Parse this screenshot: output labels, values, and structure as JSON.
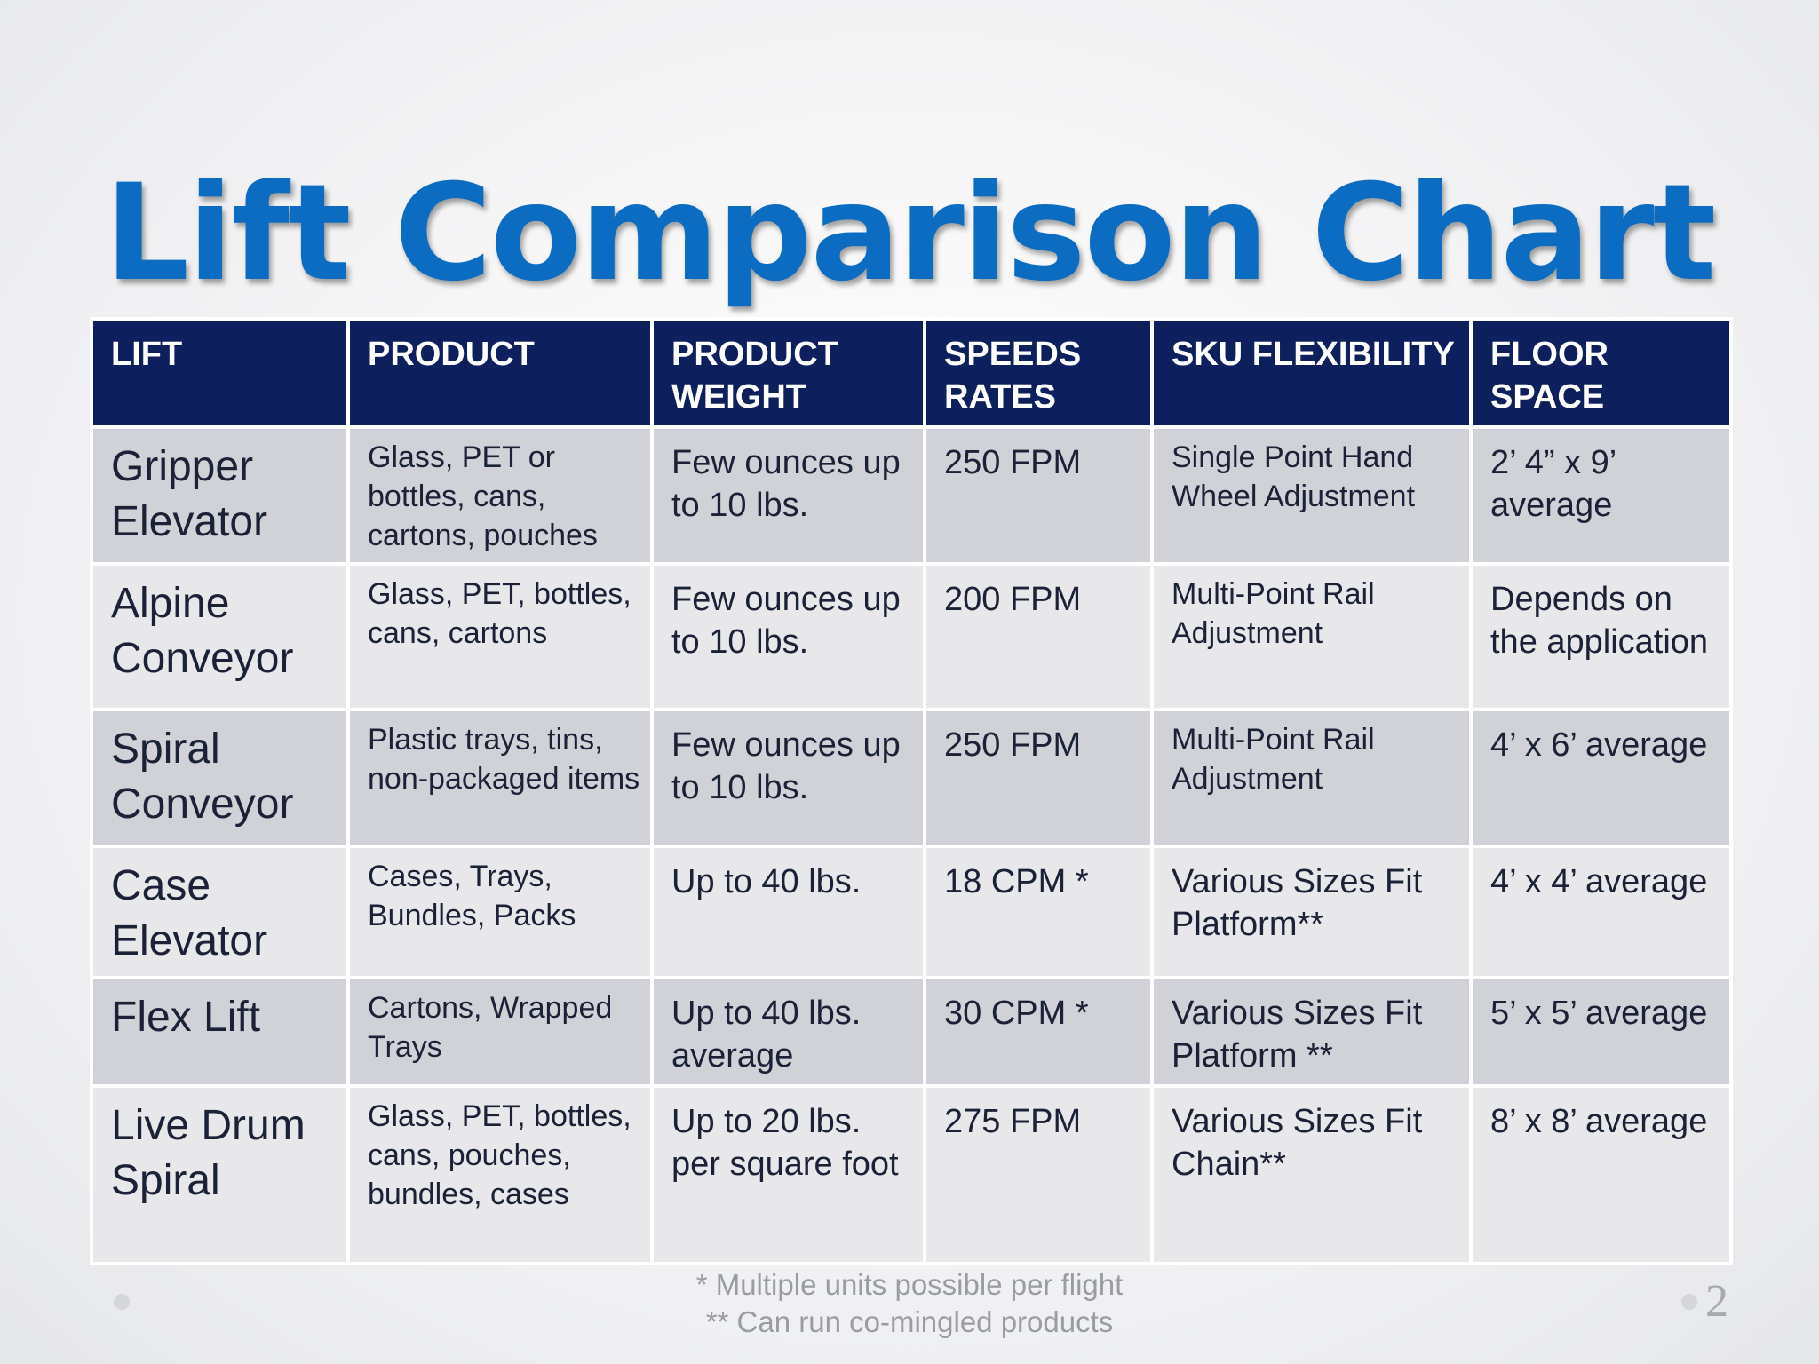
{
  "title": "Lift Comparison Chart",
  "table": {
    "headers": [
      "LIFT",
      "PRODUCT",
      "PRODUCT WEIGHT",
      "SPEEDS RATES",
      "SKU FLEXIBILITY",
      "FLOOR SPACE"
    ],
    "rows": [
      [
        "Gripper Elevator",
        "Glass, PET or bottles, cans, cartons, pouches",
        "Few ounces up to 10 lbs.",
        "250 FPM",
        "Single Point Hand Wheel Adjustment",
        "2’ 4” x 9’ average"
      ],
      [
        "Alpine Conveyor",
        "Glass, PET, bottles, cans, cartons",
        "Few ounces up to 10 lbs.",
        "200 FPM",
        "Multi-Point Rail Adjustment",
        "Depends on the application"
      ],
      [
        "Spiral Conveyor",
        "Plastic trays, tins, non-packaged items",
        "Few ounces up to 10 lbs.",
        "250 FPM",
        "Multi-Point Rail Adjustment",
        "4’ x 6’ average"
      ],
      [
        "Case Elevator",
        "Cases, Trays, Bundles, Packs",
        "Up to 40 lbs.",
        "18 CPM *",
        "Various Sizes Fit Platform**",
        "4’ x 4’ average"
      ],
      [
        "Flex Lift",
        "Cartons, Wrapped Trays",
        "Up to 40 lbs. average",
        "30 CPM *",
        "Various Sizes Fit Platform **",
        "5’ x 5’ average"
      ],
      [
        "Live Drum Spiral",
        "Glass, PET, bottles, cans, pouches, bundles, cases",
        "Up to 20 lbs. per square foot",
        "275 FPM",
        "Various Sizes Fit Chain**",
        "8’ x 8’ average"
      ]
    ]
  },
  "footnotes": [
    "* Multiple units possible per flight",
    "** Can run co-mingled products"
  ],
  "page_number": "2",
  "colors": {
    "title": "#0b6cc1",
    "header_bg": "#0d1f5c",
    "row_dark": "#d1d2d7",
    "row_light": "#e8e8eb",
    "footnote": "#9a9ca3"
  }
}
